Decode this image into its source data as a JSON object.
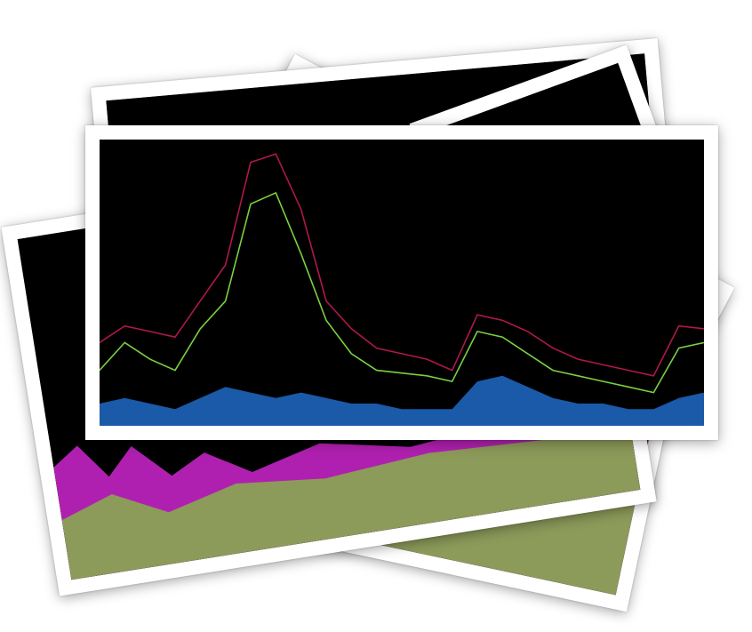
{
  "scene": {
    "description_label": "",
    "photos": [
      {
        "name": "photo-blue-streaks",
        "palette": [
          "#1a2cc8",
          "#3b6cff",
          "#f07a3a",
          "#0a0a2a"
        ]
      },
      {
        "name": "photo-magenta-green",
        "palette": [
          "#b020b0",
          "#8c9a5a",
          "#a01848",
          "#000000"
        ]
      },
      {
        "name": "photo-dark-back",
        "palette": [
          "#000000"
        ]
      },
      {
        "name": "photo-spectrum-main",
        "palette": [
          "#000000",
          "#b01848",
          "#7ad040",
          "#1a5aa8",
          "#d0a040"
        ]
      }
    ]
  },
  "chart_data": {
    "type": "area",
    "title": "",
    "xlabel": "",
    "ylabel": "",
    "series": [
      {
        "name": "",
        "color": "#b01848",
        "values": [
          0.3,
          0.36,
          0.34,
          0.32,
          0.45,
          0.58,
          0.95,
          0.98,
          0.78,
          0.45,
          0.35,
          0.28,
          0.26,
          0.24,
          0.2,
          0.4,
          0.38,
          0.34,
          0.28,
          0.24,
          0.22,
          0.2,
          0.18,
          0.36,
          0.35
        ]
      },
      {
        "name": "",
        "color": "#7ad040",
        "values": [
          0.2,
          0.3,
          0.24,
          0.2,
          0.35,
          0.45,
          0.8,
          0.84,
          0.62,
          0.38,
          0.26,
          0.2,
          0.19,
          0.18,
          0.16,
          0.34,
          0.32,
          0.26,
          0.2,
          0.18,
          0.16,
          0.14,
          0.12,
          0.28,
          0.3
        ]
      },
      {
        "name": "",
        "color": "#1a5aa8",
        "values": [
          0.08,
          0.1,
          0.08,
          0.06,
          0.1,
          0.14,
          0.12,
          0.1,
          0.12,
          0.1,
          0.08,
          0.08,
          0.06,
          0.06,
          0.06,
          0.16,
          0.18,
          0.14,
          0.1,
          0.08,
          0.08,
          0.06,
          0.06,
          0.1,
          0.12
        ]
      }
    ]
  }
}
